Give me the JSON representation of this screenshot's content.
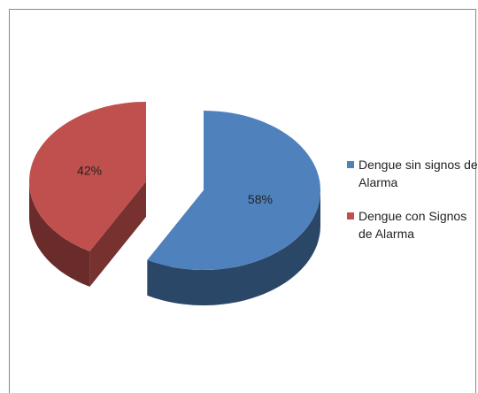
{
  "chart_data": {
    "type": "pie",
    "categories": [
      "Dengue sin signos de Alarma",
      "Dengue con Signos de Alarma"
    ],
    "values": [
      58,
      42
    ],
    "value_labels": [
      "58%",
      "42%"
    ],
    "colors": [
      "#4f81bd",
      "#c0504d"
    ],
    "legend": "right"
  }
}
